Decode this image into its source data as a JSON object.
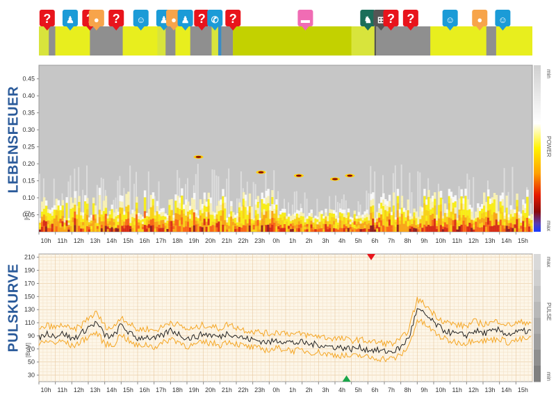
{
  "activity": {
    "segments": [
      {
        "from": 0.0,
        "to": 0.6,
        "color": "#d8e43c"
      },
      {
        "from": 0.6,
        "to": 1.0,
        "color": "#8f8f8f"
      },
      {
        "from": 1.0,
        "to": 3.1,
        "color": "#e8ee1e"
      },
      {
        "from": 3.1,
        "to": 5.1,
        "color": "#8f8f8f"
      },
      {
        "from": 5.1,
        "to": 7.2,
        "color": "#e8ee1e"
      },
      {
        "from": 7.2,
        "to": 7.7,
        "color": "#d8e43c"
      },
      {
        "from": 7.7,
        "to": 8.3,
        "color": "#8f8f8f"
      },
      {
        "from": 8.3,
        "to": 9.2,
        "color": "#e8ee1e"
      },
      {
        "from": 9.2,
        "to": 10.5,
        "color": "#8f8f8f"
      },
      {
        "from": 10.5,
        "to": 10.9,
        "color": "#d8e43c"
      },
      {
        "from": 10.9,
        "to": 11.1,
        "color": "#3a8ac8"
      },
      {
        "from": 11.1,
        "to": 11.8,
        "color": "#8f8f8f"
      },
      {
        "from": 11.8,
        "to": 19.0,
        "color": "#c3d100"
      },
      {
        "from": 19.0,
        "to": 20.4,
        "color": "#d8e43c"
      },
      {
        "from": 20.4,
        "to": 20.5,
        "color": "#555555"
      },
      {
        "from": 20.5,
        "to": 23.8,
        "color": "#8f8f8f"
      },
      {
        "from": 23.8,
        "to": 27.2,
        "color": "#e8ee1e"
      },
      {
        "from": 27.2,
        "to": 27.8,
        "color": "#8f8f8f"
      },
      {
        "from": 27.8,
        "to": 30.0,
        "color": "#e8ee1e"
      }
    ],
    "markers": [
      {
        "hour": 0.5,
        "type": "question",
        "color": "#e8141c",
        "glyph": "?"
      },
      {
        "hour": 1.9,
        "type": "meeting",
        "color": "#1b9bd7",
        "glyph": "♟"
      },
      {
        "hour": 3.1,
        "type": "question",
        "color": "#e8141c",
        "glyph": "?"
      },
      {
        "hour": 3.5,
        "type": "meal",
        "color": "#f7a44a",
        "glyph": "●"
      },
      {
        "hour": 4.7,
        "type": "question",
        "color": "#e8141c",
        "glyph": "?"
      },
      {
        "hour": 6.2,
        "type": "mind",
        "color": "#1b9bd7",
        "glyph": "☺"
      },
      {
        "hour": 7.6,
        "type": "meeting",
        "color": "#1b9bd7",
        "glyph": "♟"
      },
      {
        "hour": 8.2,
        "type": "meal",
        "color": "#f7a44a",
        "glyph": "●"
      },
      {
        "hour": 8.9,
        "type": "meeting",
        "color": "#1b9bd7",
        "glyph": "♟"
      },
      {
        "hour": 9.9,
        "type": "question",
        "color": "#e8141c",
        "glyph": "?"
      },
      {
        "hour": 10.7,
        "type": "phone",
        "color": "#1b9bd7",
        "glyph": "✆"
      },
      {
        "hour": 11.8,
        "type": "question",
        "color": "#e8141c",
        "glyph": "?"
      },
      {
        "hour": 16.2,
        "type": "sleep",
        "color": "#f06cb4",
        "glyph": "▬"
      },
      {
        "hour": 20.0,
        "type": "walk",
        "color": "#1b6e5a",
        "glyph": "♞"
      },
      {
        "hour": 20.8,
        "type": "car",
        "color": "#555555",
        "glyph": "⊞"
      },
      {
        "hour": 21.4,
        "type": "question",
        "color": "#e8141c",
        "glyph": "?"
      },
      {
        "hour": 22.6,
        "type": "question",
        "color": "#e8141c",
        "glyph": "?"
      },
      {
        "hour": 25.0,
        "type": "mind",
        "color": "#1b9bd7",
        "glyph": "☺"
      },
      {
        "hour": 26.8,
        "type": "meal",
        "color": "#f7a44a",
        "glyph": "●"
      },
      {
        "hour": 28.2,
        "type": "mind",
        "color": "#1b9bd7",
        "glyph": "☺"
      }
    ]
  },
  "spectrogram": {
    "title": "LEBENSFEUER",
    "unit": "[Hz]",
    "legend_min": "min",
    "legend_mid": "POWER",
    "legend_max": "max",
    "y_ticks": [
      "0.45",
      "0.40",
      "0.35",
      "0.30",
      "0.25",
      "0.20",
      "0.15",
      "0.10",
      "0.05"
    ],
    "hot_spots": [
      {
        "hour": 9.7,
        "freq": 0.22
      },
      {
        "hour": 13.5,
        "freq": 0.175
      },
      {
        "hour": 15.8,
        "freq": 0.165
      },
      {
        "hour": 18.0,
        "freq": 0.155
      },
      {
        "hour": 18.9,
        "freq": 0.165
      }
    ]
  },
  "pulse": {
    "title": "PULSKURVE",
    "unit": "[BpM]",
    "legend_max": "max",
    "legend_mid": "PULSE",
    "legend_min": "min",
    "y_ticks": [
      "210",
      "190",
      "170",
      "150",
      "130",
      "110",
      "90",
      "70",
      "50",
      "30"
    ]
  },
  "time_axis": [
    "10h",
    "11h",
    "12h",
    "13h",
    "14h",
    "15h",
    "16h",
    "17h",
    "18h",
    "19h",
    "20h",
    "21h",
    "22h",
    "23h",
    "0h",
    "1h",
    "2h",
    "3h",
    "4h",
    "5h",
    "6h",
    "7h",
    "8h",
    "9h",
    "10h",
    "11h",
    "12h",
    "13h",
    "14h",
    "15h"
  ],
  "chart_data": {
    "type": "line",
    "x_label": "",
    "y_label": "",
    "x_unit": "hour of day",
    "x": [
      0,
      0.5,
      1,
      1.5,
      2,
      2.5,
      3,
      3.5,
      4,
      4.5,
      5,
      5.5,
      6,
      6.5,
      7,
      7.5,
      8,
      8.5,
      9,
      9.5,
      10,
      10.5,
      11,
      11.5,
      12,
      12.5,
      13,
      13.5,
      14,
      14.5,
      15,
      15.5,
      16,
      16.5,
      17,
      17.5,
      18,
      18.5,
      19,
      19.5,
      20,
      20.5,
      21,
      21.5,
      22,
      22.5,
      23,
      23.5,
      24,
      24.5,
      25,
      25.5,
      26,
      26.5,
      27,
      27.5,
      28,
      28.5,
      29,
      29.5
    ],
    "ylim": [
      20,
      215
    ],
    "series": [
      {
        "values": [
          87,
          94,
          90,
          94,
          85,
          92,
          103,
          110,
          91,
          88,
          107,
          94,
          86,
          89,
          85,
          90,
          99,
          93,
          86,
          88,
          93,
          91,
          88,
          95,
          90,
          86,
          84,
          82,
          80,
          83,
          82,
          79,
          80,
          77,
          77,
          74,
          73,
          72,
          70,
          72,
          69,
          68,
          66,
          66,
          72,
          88,
          130,
          122,
          110,
          100,
          95,
          92,
          91,
          98,
          94,
          96,
          99,
          92,
          95,
          97
        ]
      },
      {
        "values": [
          98,
          106,
          102,
          107,
          98,
          104,
          117,
          125,
          105,
          101,
          120,
          108,
          99,
          101,
          98,
          103,
          112,
          106,
          100,
          101,
          107,
          104,
          101,
          108,
          103,
          99,
          97,
          95,
          93,
          96,
          95,
          92,
          93,
          90,
          90,
          87,
          86,
          85,
          83,
          84,
          82,
          80,
          79,
          78,
          84,
          101,
          146,
          137,
          124,
          114,
          109,
          106,
          105,
          112,
          108,
          110,
          113,
          106,
          109,
          111
        ]
      },
      {
        "values": [
          76,
          82,
          79,
          82,
          74,
          80,
          89,
          95,
          78,
          75,
          93,
          81,
          74,
          77,
          73,
          78,
          86,
          81,
          74,
          76,
          80,
          79,
          76,
          82,
          78,
          74,
          72,
          70,
          68,
          71,
          70,
          67,
          68,
          65,
          65,
          62,
          61,
          60,
          58,
          60,
          57,
          56,
          55,
          55,
          60,
          75,
          114,
          107,
          96,
          87,
          82,
          80,
          79,
          85,
          82,
          84,
          86,
          80,
          83,
          85
        ]
      }
    ],
    "markers": [
      {
        "label": "max",
        "hour": 20.2,
        "value": 215
      },
      {
        "label": "min",
        "hour": 18.7,
        "value": 25
      }
    ]
  }
}
